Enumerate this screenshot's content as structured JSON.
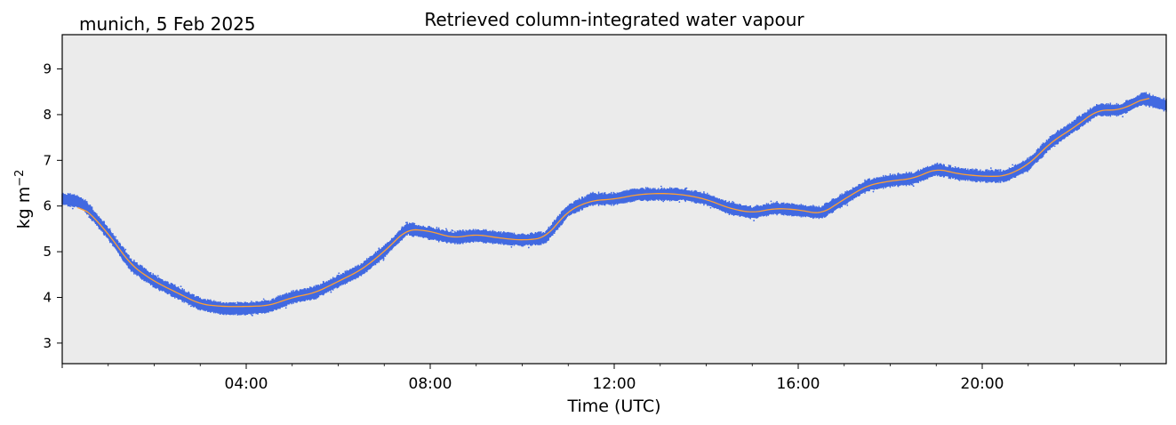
{
  "chart_data": {
    "type": "line",
    "title": "Retrieved column-integrated water vapour",
    "subtitle": "munich, 5 Feb 2025",
    "xlabel": "Time (UTC)",
    "ylabel": "kg m",
    "ylabel_sup": "−2",
    "xlim": [
      "00:00",
      "24:00"
    ],
    "ylim": [
      2.55,
      9.75
    ],
    "x_ticks": [
      "04:00",
      "08:00",
      "12:00",
      "16:00",
      "20:00"
    ],
    "y_ticks": [
      "3",
      "4",
      "5",
      "6",
      "7",
      "8",
      "9"
    ],
    "background_color": "#ebebeb",
    "grid": false,
    "series": [
      {
        "color": "#4169e1",
        "style": "raw-scatter-band",
        "band_halfwidth": 0.1,
        "x": [
          "00:00",
          "00:20",
          "00:30",
          "01:00",
          "01:30",
          "02:00",
          "02:30",
          "03:00",
          "03:30",
          "04:00",
          "04:30",
          "05:00",
          "05:30",
          "06:00",
          "06:30",
          "07:00",
          "07:30",
          "08:00",
          "08:30",
          "09:00",
          "09:30",
          "10:00",
          "10:30",
          "11:00",
          "11:30",
          "12:00",
          "12:30",
          "13:00",
          "13:30",
          "14:00",
          "14:30",
          "15:00",
          "15:30",
          "16:00",
          "16:30",
          "17:00",
          "17:30",
          "18:00",
          "18:30",
          "19:00",
          "19:30",
          "20:00",
          "20:30",
          "21:00",
          "21:30",
          "22:00",
          "22:30",
          "23:00",
          "23:30",
          "24:00"
        ],
        "y": [
          6.15,
          6.1,
          6.0,
          5.4,
          4.7,
          4.35,
          4.1,
          3.85,
          3.75,
          3.75,
          3.8,
          4.0,
          4.1,
          4.35,
          4.6,
          5.0,
          5.5,
          5.4,
          5.3,
          5.35,
          5.3,
          5.25,
          5.3,
          5.9,
          6.15,
          6.15,
          6.25,
          6.25,
          6.25,
          6.15,
          5.95,
          5.85,
          5.95,
          5.9,
          5.85,
          6.15,
          6.45,
          6.55,
          6.6,
          6.8,
          6.7,
          6.65,
          6.65,
          6.9,
          7.4,
          7.75,
          8.1,
          8.1,
          8.35,
          8.2
        ]
      },
      {
        "color": "#ffa033",
        "style": "smoothed-line",
        "x": [
          "00:20",
          "00:30",
          "01:00",
          "01:30",
          "02:00",
          "02:30",
          "03:00",
          "03:30",
          "04:00",
          "04:30",
          "05:00",
          "05:30",
          "06:00",
          "06:30",
          "07:00",
          "07:30",
          "08:00",
          "08:30",
          "09:00",
          "09:30",
          "10:00",
          "10:30",
          "11:00",
          "11:30",
          "12:00",
          "12:30",
          "13:00",
          "13:30",
          "14:00",
          "14:30",
          "15:00",
          "15:30",
          "16:00",
          "16:30",
          "17:00",
          "17:30",
          "18:00",
          "18:30",
          "19:00",
          "19:30",
          "20:00",
          "20:30",
          "21:00",
          "21:30",
          "22:00",
          "22:30",
          "23:00",
          "23:40"
        ],
        "y": [
          6.0,
          5.95,
          5.4,
          4.7,
          4.35,
          4.1,
          3.85,
          3.8,
          3.8,
          3.82,
          4.0,
          4.1,
          4.35,
          4.6,
          5.0,
          5.5,
          5.45,
          5.3,
          5.38,
          5.3,
          5.25,
          5.3,
          5.9,
          6.12,
          6.15,
          6.25,
          6.28,
          6.25,
          6.15,
          5.95,
          5.85,
          5.95,
          5.92,
          5.82,
          6.15,
          6.45,
          6.55,
          6.6,
          6.82,
          6.7,
          6.65,
          6.65,
          6.9,
          7.4,
          7.72,
          8.1,
          8.1,
          8.42
        ]
      }
    ]
  }
}
